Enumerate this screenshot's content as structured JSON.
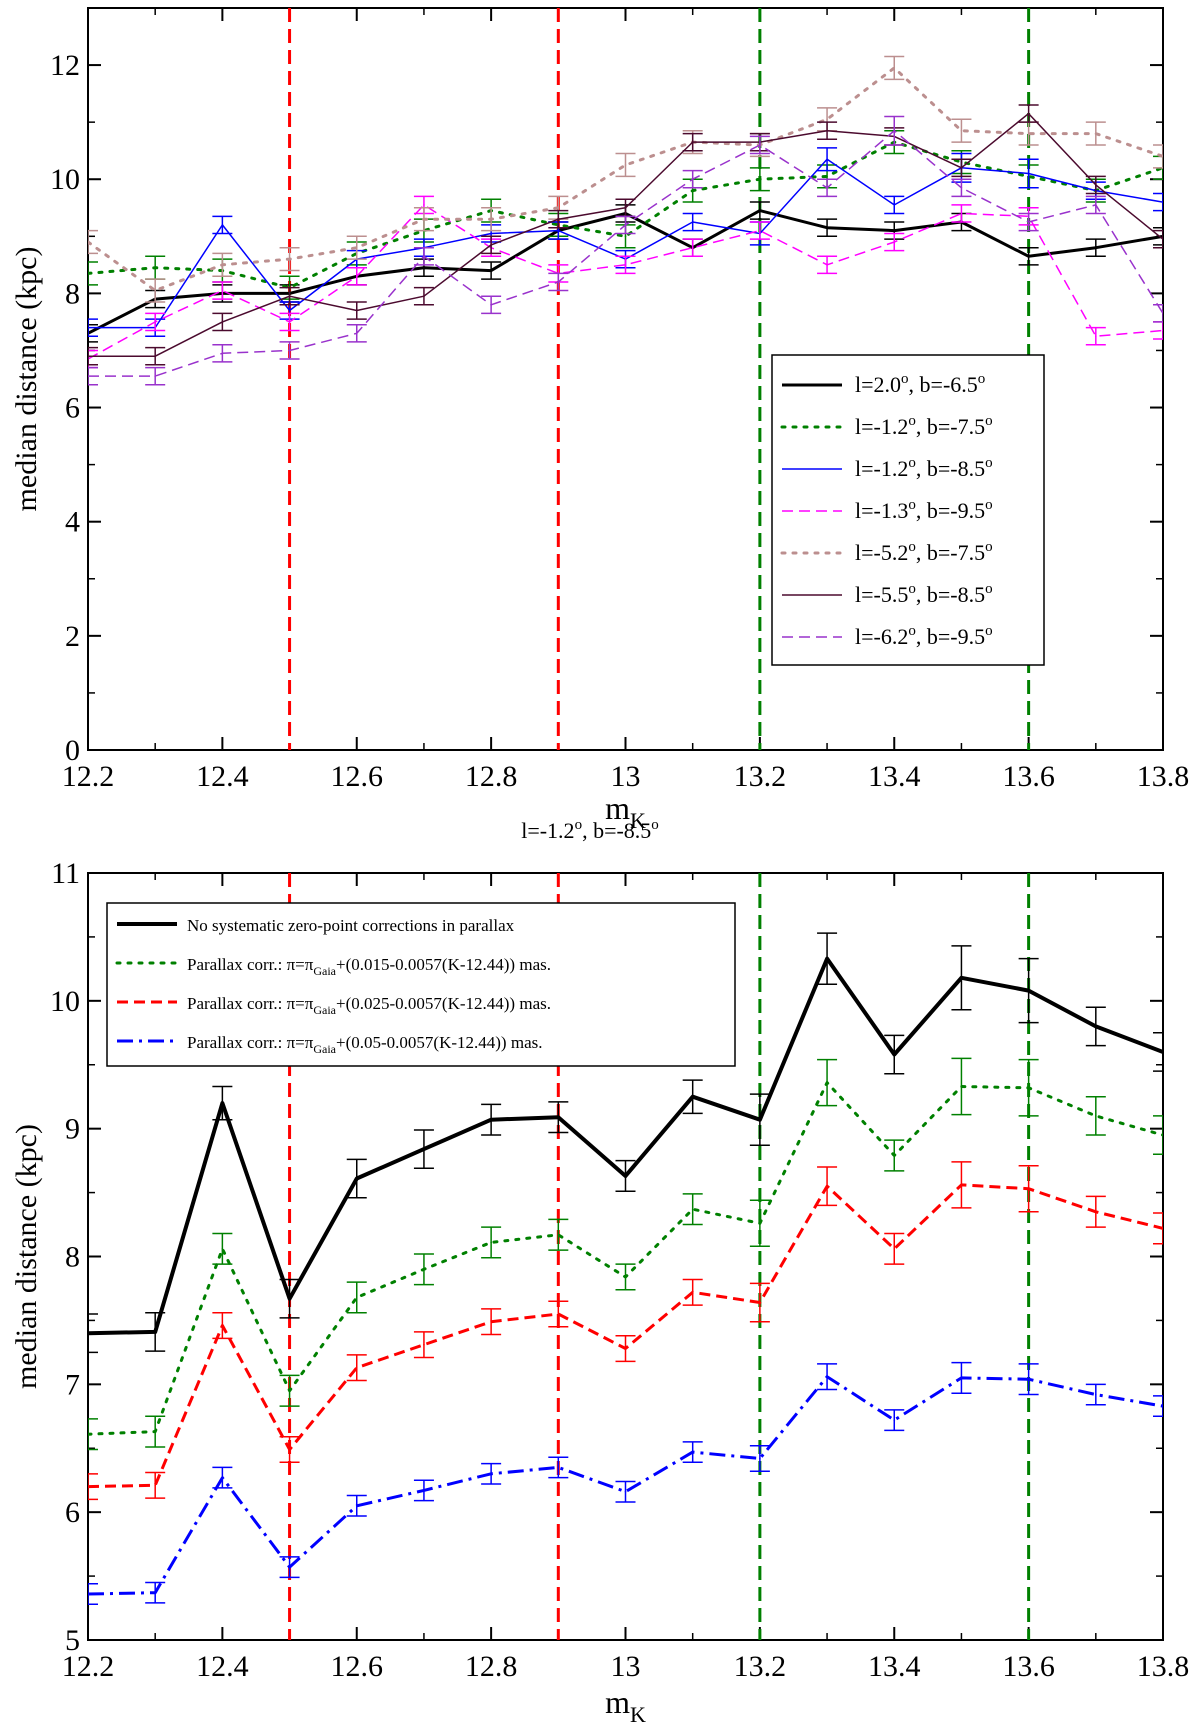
{
  "figure_title": "",
  "chart_data": [
    {
      "type": "line",
      "title": "",
      "xlabel": "m",
      "xlabel_sub": "K",
      "ylabel": "median distance (kpc)",
      "xlim": [
        12.2,
        13.8
      ],
      "ylim": [
        0,
        13
      ],
      "xticks": [
        12.2,
        12.4,
        12.6,
        12.8,
        13,
        13.2,
        13.4,
        13.6,
        13.8
      ],
      "xtick_labels": [
        "12.2",
        "12.4",
        "12.6",
        "12.8",
        "13",
        "13.2",
        "13.4",
        "13.6",
        "13.8"
      ],
      "yticks": [
        0,
        2,
        4,
        6,
        8,
        10,
        12
      ],
      "ytick_labels": [
        "0",
        "2",
        "4",
        "6",
        "8",
        "10",
        "12"
      ],
      "grid": false,
      "legend_position": "lower-right",
      "vlines": [
        {
          "x": 12.5,
          "color": "#ff0000"
        },
        {
          "x": 12.9,
          "color": "#ff0000"
        },
        {
          "x": 13.2,
          "color": "#008000"
        },
        {
          "x": 13.6,
          "color": "#008000"
        }
      ],
      "x": [
        12.2,
        12.3,
        12.4,
        12.5,
        12.6,
        12.7,
        12.8,
        12.9,
        13.0,
        13.1,
        13.2,
        13.3,
        13.4,
        13.5,
        13.6,
        13.7,
        13.8
      ],
      "series": [
        {
          "name": "l=2.0°, b=-6.5°",
          "color": "#000000",
          "dash": "solid",
          "width": 3,
          "values": [
            7.3,
            7.9,
            8.0,
            8.0,
            8.3,
            8.45,
            8.4,
            9.1,
            9.4,
            8.8,
            9.45,
            9.15,
            9.1,
            9.25,
            8.65,
            8.8,
            9.0
          ],
          "errors": [
            0.15,
            0.15,
            0.15,
            0.15,
            0.15,
            0.15,
            0.15,
            0.15,
            0.15,
            0.15,
            0.15,
            0.15,
            0.15,
            0.15,
            0.15,
            0.15,
            0.15
          ]
        },
        {
          "name": "l=-1.2°, b=-7.5°",
          "color": "#008000",
          "dash": "dotted",
          "width": 3,
          "values": [
            8.35,
            8.45,
            8.4,
            8.1,
            8.7,
            9.1,
            9.45,
            9.2,
            9.0,
            9.8,
            10.0,
            10.05,
            10.65,
            10.3,
            10.05,
            9.8,
            10.2
          ],
          "errors": [
            0.2,
            0.2,
            0.2,
            0.2,
            0.2,
            0.2,
            0.2,
            0.2,
            0.2,
            0.2,
            0.2,
            0.2,
            0.2,
            0.2,
            0.2,
            0.2,
            0.2
          ]
        },
        {
          "name": "l=-1.2°, b=-8.5°",
          "color": "#0000ff",
          "dash": "solid",
          "width": 1.5,
          "values": [
            7.4,
            7.4,
            9.2,
            7.7,
            8.6,
            8.8,
            9.05,
            9.1,
            8.6,
            9.25,
            9.05,
            10.35,
            9.55,
            10.2,
            10.1,
            9.8,
            9.6
          ],
          "errors": [
            0.15,
            0.15,
            0.15,
            0.15,
            0.15,
            0.15,
            0.15,
            0.15,
            0.15,
            0.15,
            0.2,
            0.2,
            0.15,
            0.25,
            0.25,
            0.15,
            0.15
          ]
        },
        {
          "name": "l=-1.3°, b=-9.5°",
          "color": "#ff00ff",
          "dash": "dashed",
          "width": 1.5,
          "values": [
            6.85,
            7.5,
            8.05,
            7.5,
            8.3,
            9.55,
            8.8,
            8.35,
            8.5,
            8.8,
            9.1,
            8.5,
            8.9,
            9.4,
            9.35,
            7.25,
            7.35
          ],
          "errors": [
            0.15,
            0.15,
            0.15,
            0.15,
            0.15,
            0.15,
            0.15,
            0.15,
            0.15,
            0.15,
            0.15,
            0.15,
            0.15,
            0.15,
            0.15,
            0.15,
            0.15
          ]
        },
        {
          "name": "l=-5.2°, b=-7.5°",
          "color": "#bc8f8f",
          "dash": "dotted",
          "width": 3,
          "values": [
            8.9,
            8.05,
            8.5,
            8.6,
            8.8,
            9.3,
            9.3,
            9.5,
            10.25,
            10.65,
            10.6,
            11.05,
            11.95,
            10.85,
            10.8,
            10.8,
            10.4
          ],
          "errors": [
            0.2,
            0.2,
            0.2,
            0.2,
            0.2,
            0.2,
            0.2,
            0.2,
            0.2,
            0.2,
            0.2,
            0.2,
            0.2,
            0.2,
            0.2,
            0.2,
            0.2
          ]
        },
        {
          "name": "l=-5.5°, b=-8.5°",
          "color": "#4b0a2e",
          "dash": "solid",
          "width": 1.5,
          "values": [
            6.9,
            6.9,
            7.5,
            7.95,
            7.7,
            7.95,
            8.85,
            9.3,
            9.5,
            10.65,
            10.65,
            10.85,
            10.75,
            10.2,
            11.15,
            9.9,
            8.95
          ],
          "errors": [
            0.15,
            0.15,
            0.15,
            0.15,
            0.15,
            0.15,
            0.15,
            0.15,
            0.15,
            0.15,
            0.15,
            0.15,
            0.15,
            0.15,
            0.15,
            0.15,
            0.15
          ]
        },
        {
          "name": "l=-6.2°, b=-9.5°",
          "color": "#9932cc",
          "dash": "dashed",
          "width": 1.5,
          "values": [
            6.55,
            6.55,
            6.95,
            7.0,
            7.3,
            8.65,
            7.8,
            8.2,
            9.2,
            10.0,
            10.6,
            9.85,
            10.85,
            9.85,
            9.25,
            9.55,
            7.65
          ],
          "errors": [
            0.15,
            0.15,
            0.15,
            0.15,
            0.15,
            0.15,
            0.15,
            0.15,
            0.15,
            0.15,
            0.15,
            0.15,
            0.25,
            0.15,
            0.15,
            0.15,
            0.15
          ]
        }
      ]
    },
    {
      "type": "line",
      "title": "l=-1.2°, b=-8.5°",
      "xlabel": "m",
      "xlabel_sub": "K",
      "ylabel": "median distance (kpc)",
      "xlim": [
        12.2,
        13.8
      ],
      "ylim": [
        5,
        11
      ],
      "xticks": [
        12.2,
        12.4,
        12.6,
        12.8,
        13,
        13.2,
        13.4,
        13.6,
        13.8
      ],
      "xtick_labels": [
        "12.2",
        "12.4",
        "12.6",
        "12.8",
        "13",
        "13.2",
        "13.4",
        "13.6",
        "13.8"
      ],
      "yticks": [
        5,
        6,
        7,
        8,
        9,
        10,
        11
      ],
      "ytick_labels": [
        "5",
        "6",
        "7",
        "8",
        "9",
        "10",
        "11"
      ],
      "grid": false,
      "legend_position": "top-left",
      "vlines": [
        {
          "x": 12.5,
          "color": "#ff0000"
        },
        {
          "x": 12.9,
          "color": "#ff0000"
        },
        {
          "x": 13.2,
          "color": "#008000"
        },
        {
          "x": 13.6,
          "color": "#008000"
        }
      ],
      "x": [
        12.2,
        12.3,
        12.4,
        12.5,
        12.6,
        12.7,
        12.8,
        12.9,
        13.0,
        13.1,
        13.2,
        13.3,
        13.4,
        13.5,
        13.6,
        13.7,
        13.8
      ],
      "series": [
        {
          "name": "No systematic zero-point corrections in parallax",
          "color": "#000000",
          "dash": "solid",
          "width": 4,
          "values": [
            7.4,
            7.41,
            9.2,
            7.67,
            8.61,
            8.84,
            9.07,
            9.09,
            8.63,
            9.25,
            9.07,
            10.33,
            9.58,
            10.18,
            10.08,
            9.8,
            9.6
          ],
          "errors": [
            0.15,
            0.15,
            0.13,
            0.15,
            0.15,
            0.15,
            0.12,
            0.12,
            0.12,
            0.13,
            0.2,
            0.2,
            0.15,
            0.25,
            0.25,
            0.15,
            0.15
          ]
        },
        {
          "name": "Parallax corr.: π=π_Gaia+(0.015-0.0057(K-12.44)) mas.",
          "color": "#008000",
          "dash": "dotted",
          "width": 3,
          "values": [
            6.61,
            6.63,
            8.06,
            6.95,
            7.68,
            7.9,
            8.11,
            8.17,
            7.84,
            8.37,
            8.26,
            9.36,
            8.79,
            9.33,
            9.32,
            9.1,
            8.95
          ],
          "errors": [
            0.12,
            0.12,
            0.12,
            0.12,
            0.12,
            0.12,
            0.12,
            0.12,
            0.1,
            0.12,
            0.18,
            0.18,
            0.12,
            0.22,
            0.22,
            0.15,
            0.15
          ]
        },
        {
          "name": "Parallax corr.: π=π_Gaia+(0.025-0.0057(K-12.44)) mas.",
          "color": "#ff0000",
          "dash": "dashed",
          "width": 3,
          "values": [
            6.2,
            6.21,
            7.46,
            6.49,
            7.13,
            7.31,
            7.49,
            7.55,
            7.28,
            7.72,
            7.64,
            8.55,
            8.06,
            8.56,
            8.53,
            8.35,
            8.22
          ],
          "errors": [
            0.1,
            0.1,
            0.1,
            0.1,
            0.1,
            0.1,
            0.1,
            0.1,
            0.1,
            0.1,
            0.15,
            0.15,
            0.12,
            0.18,
            0.18,
            0.12,
            0.12
          ]
        },
        {
          "name": "Parallax corr.: π=π_Gaia+(0.05-0.0057(K-12.44)) mas.",
          "color": "#0000ff",
          "dash": "dashdot",
          "width": 3,
          "values": [
            5.36,
            5.37,
            6.27,
            5.57,
            6.05,
            6.17,
            6.3,
            6.35,
            6.16,
            6.47,
            6.42,
            7.06,
            6.72,
            7.05,
            7.04,
            6.92,
            6.83
          ],
          "errors": [
            0.08,
            0.08,
            0.08,
            0.08,
            0.08,
            0.08,
            0.08,
            0.08,
            0.08,
            0.08,
            0.1,
            0.1,
            0.08,
            0.12,
            0.12,
            0.08,
            0.08
          ]
        }
      ]
    }
  ]
}
